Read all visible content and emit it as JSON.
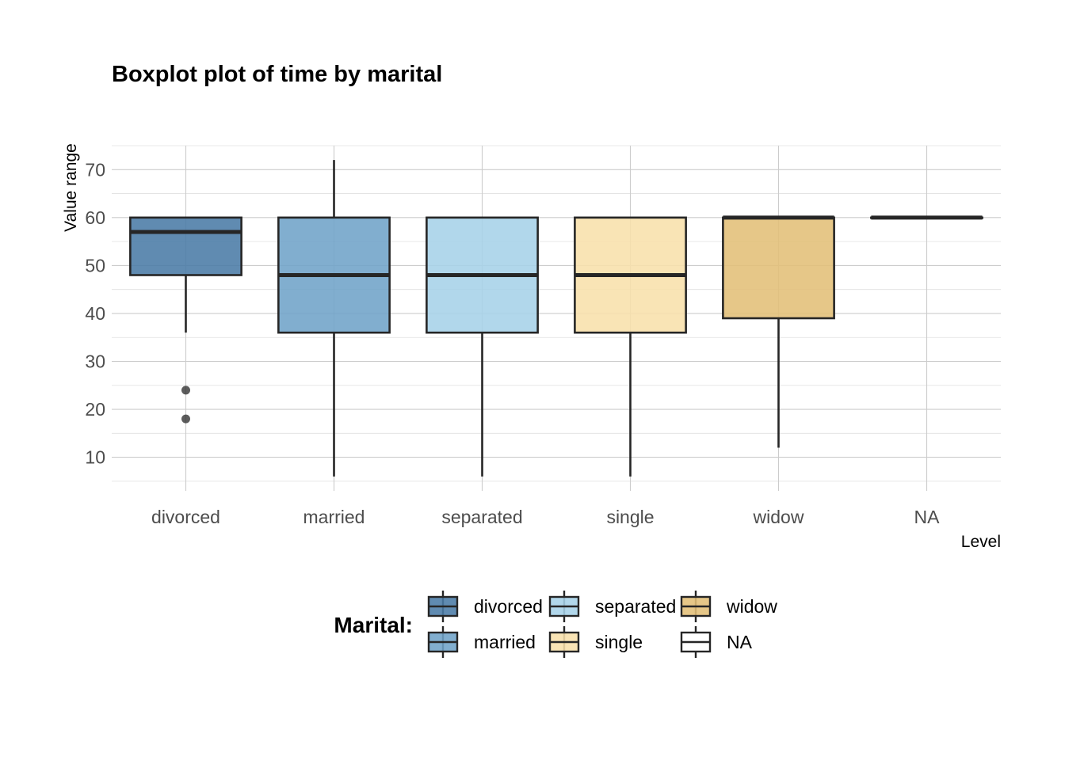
{
  "chart_data": {
    "type": "boxplot",
    "title": "Boxplot plot of time by marital",
    "xlabel": "Level",
    "ylabel": "Value range",
    "ylim": [
      3,
      75
    ],
    "yticks": [
      10,
      20,
      30,
      40,
      50,
      60,
      70
    ],
    "grid": true,
    "legend": {
      "title": "Marital:",
      "placement": "bottom"
    },
    "categories": [
      "divorced",
      "married",
      "separated",
      "single",
      "widow",
      "NA"
    ],
    "boxes": [
      {
        "name": "divorced",
        "q1": 48,
        "median": 57,
        "q3": 60,
        "whisker_low": 36,
        "whisker_high": 60,
        "outliers": [
          24,
          18
        ],
        "color": "#4a7ba6"
      },
      {
        "name": "married",
        "q1": 36,
        "median": 48,
        "q3": 60,
        "whisker_low": 6,
        "whisker_high": 72,
        "outliers": [],
        "color": "#6fa3c8"
      },
      {
        "name": "separated",
        "q1": 36,
        "median": 48,
        "q3": 60,
        "whisker_low": 6,
        "whisker_high": 60,
        "outliers": [],
        "color": "#a6d1e8"
      },
      {
        "name": "single",
        "q1": 36,
        "median": 48,
        "q3": 60,
        "whisker_low": 6,
        "whisker_high": 60,
        "outliers": [],
        "color": "#f8e0ab"
      },
      {
        "name": "widow",
        "q1": 39,
        "median": 60,
        "q3": 60,
        "whisker_low": 12,
        "whisker_high": 60,
        "outliers": [],
        "color": "#e3bf78"
      },
      {
        "name": "NA",
        "q1": 60,
        "median": 60,
        "q3": 60,
        "whisker_low": 60,
        "whisker_high": 60,
        "outliers": [],
        "color": "#ffffff"
      }
    ]
  }
}
